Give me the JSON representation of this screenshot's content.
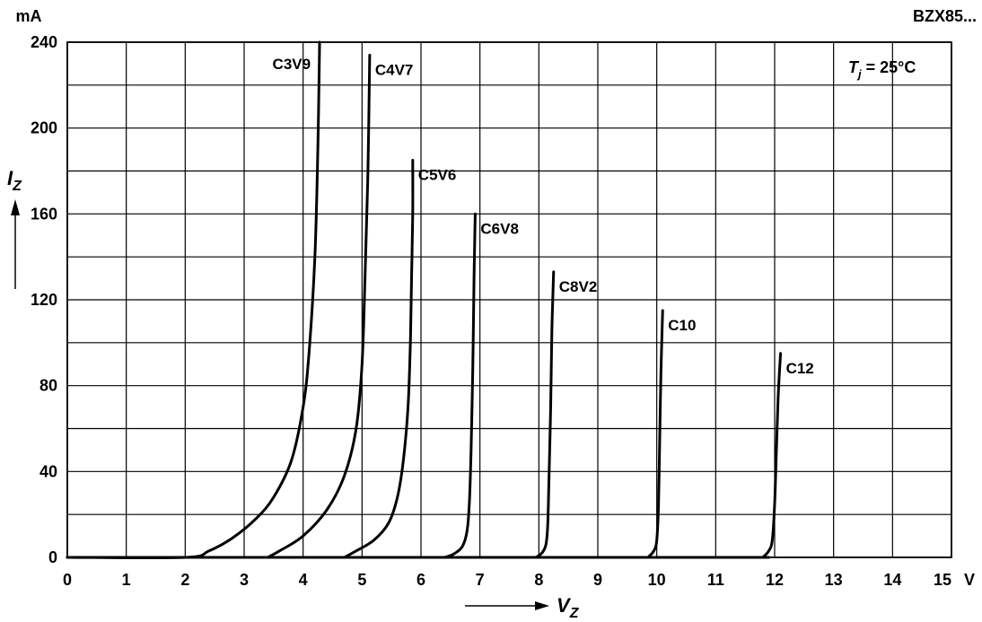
{
  "header": {
    "part_number": "BZX85..."
  },
  "chart_data": {
    "type": "line",
    "title": "",
    "xlabel": "V",
    "xlabel_sub": "Z",
    "x_unit": "V",
    "ylabel": "I",
    "ylabel_sub": "Z",
    "y_unit": "mA",
    "xlim": [
      0,
      15
    ],
    "ylim": [
      0,
      240
    ],
    "x_ticks": [
      0,
      1,
      2,
      3,
      4,
      5,
      6,
      7,
      8,
      9,
      10,
      11,
      12,
      13,
      14,
      15
    ],
    "y_ticks": [
      0,
      40,
      80,
      120,
      160,
      200,
      240
    ],
    "grid": true,
    "annotation": {
      "symbol": "T",
      "sub": "j",
      "value": " = 25°C"
    },
    "series": [
      {
        "name": "C3V9",
        "x": [
          0,
          2.0,
          2.4,
          2.8,
          3.2,
          3.5,
          3.8,
          4.0,
          4.1,
          4.2,
          4.25,
          4.28
        ],
        "y": [
          0,
          0,
          3,
          9,
          18,
          28,
          45,
          70,
          95,
          140,
          190,
          240
        ]
      },
      {
        "name": "C4V7",
        "x": [
          3.4,
          3.6,
          4.0,
          4.4,
          4.7,
          4.9,
          5.0,
          5.05,
          5.1,
          5.13
        ],
        "y": [
          0,
          3,
          10,
          22,
          38,
          60,
          90,
          130,
          180,
          234
        ]
      },
      {
        "name": "C5V6",
        "x": [
          4.7,
          4.9,
          5.2,
          5.45,
          5.6,
          5.7,
          5.78,
          5.82,
          5.84,
          5.86,
          5.86
        ],
        "y": [
          0,
          3,
          8,
          16,
          28,
          45,
          70,
          100,
          130,
          160,
          185
        ]
      },
      {
        "name": "C6V8",
        "x": [
          6.4,
          6.55,
          6.7,
          6.78,
          6.82,
          6.85,
          6.88,
          6.9,
          6.92
        ],
        "y": [
          0,
          1.5,
          5,
          12,
          25,
          50,
          90,
          130,
          160
        ]
      },
      {
        "name": "C8V2",
        "x": [
          7.95,
          8.05,
          8.12,
          8.15,
          8.17,
          8.2,
          8.22,
          8.25
        ],
        "y": [
          0,
          2,
          6,
          15,
          35,
          70,
          105,
          133
        ]
      },
      {
        "name": "C10",
        "x": [
          9.85,
          9.95,
          10.0,
          10.03,
          10.05,
          10.07,
          10.1
        ],
        "y": [
          0,
          3,
          8,
          25,
          55,
          85,
          115
        ]
      },
      {
        "name": "C12",
        "x": [
          11.8,
          11.9,
          11.96,
          12.0,
          12.03,
          12.06,
          12.1
        ],
        "y": [
          0,
          3,
          8,
          25,
          50,
          75,
          95
        ]
      }
    ]
  }
}
